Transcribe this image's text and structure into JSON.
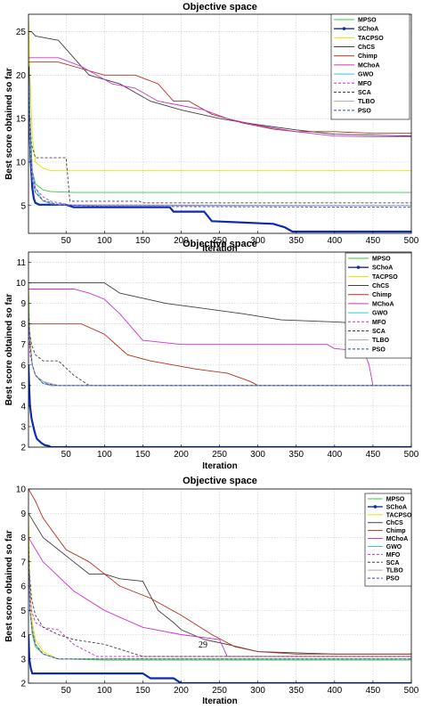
{
  "chart_data": [
    {
      "type": "line",
      "title": "Objective space",
      "xlabel": "Iteration",
      "ylabel": "Best score obtained so far",
      "xlim": [
        1,
        500
      ],
      "ylim": [
        1.8,
        27
      ],
      "xticks": [
        50,
        100,
        150,
        200,
        250,
        300,
        350,
        400,
        450,
        500
      ],
      "yticks": [
        5,
        10,
        15,
        20,
        25
      ],
      "grid": true,
      "legend_position": "top-right",
      "series": [
        {
          "name": "MPSO",
          "color": "#33cc33",
          "style": "solid",
          "marker": "",
          "x": [
            1,
            3,
            6,
            10,
            20,
            30,
            60,
            500
          ],
          "y": [
            22,
            15,
            9,
            7.5,
            6.8,
            6.6,
            6.5,
            6.5
          ]
        },
        {
          "name": "SChoA",
          "color": "#0b2bb0",
          "style": "solid",
          "marker": "dot",
          "x": [
            1,
            2,
            4,
            6,
            8,
            10,
            15,
            50,
            60,
            185,
            190,
            230,
            240,
            320,
            335,
            345,
            500
          ],
          "y": [
            21,
            15,
            10,
            7,
            5.8,
            5.3,
            5.1,
            5.1,
            4.8,
            4.8,
            4.3,
            4.3,
            3.2,
            2.9,
            2.5,
            2,
            2
          ]
        },
        {
          "name": "TACPSO",
          "color": "#e8e000",
          "style": "solid",
          "marker": "",
          "x": [
            1,
            3,
            6,
            10,
            20,
            30,
            500
          ],
          "y": [
            27,
            20,
            13,
            10,
            9.3,
            9,
            9
          ]
        },
        {
          "name": "ChCS",
          "color": "#404040",
          "style": "solid",
          "marker": "",
          "x": [
            1,
            5,
            10,
            40,
            60,
            80,
            120,
            160,
            200,
            250,
            300,
            350,
            400,
            450,
            500
          ],
          "y": [
            25,
            25,
            24.5,
            24,
            22,
            20,
            19,
            17,
            16,
            15,
            14.3,
            13.7,
            13.2,
            13.1,
            13
          ]
        },
        {
          "name": "Chimp",
          "color": "#b03020",
          "style": "solid",
          "marker": "",
          "x": [
            1,
            40,
            80,
            100,
            140,
            170,
            190,
            210,
            240,
            280,
            320,
            350,
            400,
            450,
            500
          ],
          "y": [
            21.5,
            21.5,
            20.5,
            20,
            20,
            19,
            17,
            17,
            15.5,
            14.5,
            13.8,
            13.5,
            13.5,
            13.3,
            13.3
          ]
        },
        {
          "name": "MChoA",
          "color": "#cc33cc",
          "style": "solid",
          "marker": "",
          "x": [
            1,
            40,
            70,
            110,
            140,
            170,
            200,
            230,
            260,
            300,
            350,
            400,
            450,
            500
          ],
          "y": [
            22,
            22,
            21,
            19,
            18.5,
            17,
            16.5,
            16,
            15,
            14.2,
            13.5,
            13,
            12.9,
            12.9
          ]
        },
        {
          "name": "GWO",
          "color": "#33cccc",
          "style": "solid",
          "marker": "",
          "x": [
            1,
            3,
            5,
            10,
            20,
            30,
            50,
            100,
            500
          ],
          "y": [
            20,
            14,
            9,
            7,
            5.5,
            5.2,
            5.1,
            5,
            5
          ]
        },
        {
          "name": "MFO",
          "color": "#cc33cc",
          "style": "dashed",
          "marker": "",
          "x": [
            1,
            3,
            6,
            10,
            20,
            30,
            60,
            500
          ],
          "y": [
            18,
            12,
            9,
            7,
            6,
            5.5,
            5,
            5
          ]
        },
        {
          "name": "SCA",
          "color": "#404040",
          "style": "dashed",
          "marker": "",
          "x": [
            1,
            5,
            10,
            20,
            30,
            40,
            50,
            55,
            145,
            150,
            500
          ],
          "y": [
            17,
            12,
            10.5,
            10.5,
            10.5,
            10.5,
            10.5,
            5.5,
            5.5,
            5.3,
            5.3
          ]
        },
        {
          "name": "TLBO",
          "color": "#aaaaaa",
          "style": "solid",
          "marker": "",
          "x": [
            1,
            3,
            6,
            10,
            20,
            40,
            500
          ],
          "y": [
            20,
            12,
            8,
            6.5,
            5.5,
            5.1,
            5
          ]
        },
        {
          "name": "PSO",
          "color": "#3344cc",
          "style": "dashed",
          "marker": "",
          "x": [
            1,
            3,
            6,
            10,
            20,
            40,
            100,
            500
          ],
          "y": [
            19,
            12,
            8,
            6.5,
            5.6,
            5.1,
            4.9,
            4.8
          ]
        }
      ]
    },
    {
      "type": "line",
      "title": "Objective space",
      "xlabel": "Iteration",
      "ylabel": "Best score obtained so far",
      "xlim": [
        1,
        500
      ],
      "ylim": [
        2,
        11.5
      ],
      "xticks": [
        50,
        100,
        150,
        200,
        250,
        300,
        350,
        400,
        450,
        500
      ],
      "yticks": [
        2,
        3,
        4,
        5,
        6,
        7,
        8,
        9,
        10,
        11
      ],
      "grid": true,
      "legend_position": "top-right",
      "series": [
        {
          "name": "MPSO",
          "color": "#33cc33",
          "style": "solid",
          "marker": "",
          "x": [
            1,
            3,
            6,
            10,
            20,
            30,
            500
          ],
          "y": [
            9,
            7,
            6,
            5.5,
            5.1,
            5,
            5
          ]
        },
        {
          "name": "SChoA",
          "color": "#0b2bb0",
          "style": "solid",
          "marker": "dot",
          "x": [
            1,
            2,
            3,
            5,
            8,
            10,
            12,
            18,
            22,
            28,
            30,
            500
          ],
          "y": [
            6,
            4.8,
            4,
            3.4,
            2.9,
            2.6,
            2.4,
            2.2,
            2.1,
            2.05,
            2,
            2
          ]
        },
        {
          "name": "TACPSO",
          "color": "#e8e000",
          "style": "solid",
          "marker": "",
          "x": [
            1,
            3,
            6,
            10,
            20,
            30,
            500
          ],
          "y": [
            10,
            7.5,
            6,
            5.5,
            5.2,
            5,
            5
          ]
        },
        {
          "name": "ChCS",
          "color": "#404040",
          "style": "solid",
          "marker": "",
          "x": [
            1,
            100,
            120,
            180,
            220,
            280,
            330,
            400,
            450,
            500
          ],
          "y": [
            10,
            10,
            9.5,
            9,
            8.8,
            8.5,
            8.2,
            8.1,
            8,
            8
          ]
        },
        {
          "name": "Chimp",
          "color": "#b03020",
          "style": "solid",
          "marker": "",
          "x": [
            1,
            70,
            100,
            130,
            160,
            190,
            220,
            260,
            290,
            300,
            500
          ],
          "y": [
            8,
            8,
            7.5,
            6.5,
            6.2,
            6,
            5.8,
            5.6,
            5.2,
            5,
            5
          ]
        },
        {
          "name": "MChoA",
          "color": "#cc33cc",
          "style": "solid",
          "marker": "",
          "x": [
            1,
            60,
            80,
            100,
            120,
            150,
            200,
            300,
            390,
            400,
            430,
            440,
            445,
            450
          ],
          "y": [
            9.7,
            9.7,
            9.5,
            9.2,
            8.5,
            7.2,
            7,
            7,
            7,
            6.8,
            6.7,
            6.5,
            6,
            5
          ]
        },
        {
          "name": "GWO",
          "color": "#33cccc",
          "style": "solid",
          "marker": "",
          "x": [
            1,
            3,
            6,
            10,
            20,
            30,
            500
          ],
          "y": [
            9.5,
            7,
            6,
            5.5,
            5.1,
            5,
            5
          ]
        },
        {
          "name": "MFO",
          "color": "#cc33cc",
          "style": "dashed",
          "marker": "",
          "x": [
            1,
            3,
            6,
            10,
            20,
            30,
            500
          ],
          "y": [
            8,
            6.5,
            6,
            5.5,
            5.2,
            5,
            5
          ]
        },
        {
          "name": "SCA",
          "color": "#404040",
          "style": "dashed",
          "marker": "",
          "x": [
            1,
            5,
            10,
            20,
            40,
            60,
            80,
            500
          ],
          "y": [
            8,
            7,
            6.5,
            6.2,
            6.2,
            5.5,
            5,
            5
          ]
        },
        {
          "name": "TLBO",
          "color": "#aaaaaa",
          "style": "solid",
          "marker": "",
          "x": [
            1,
            3,
            6,
            10,
            20,
            40,
            500
          ],
          "y": [
            9,
            7,
            6,
            5.5,
            5.2,
            5,
            5
          ]
        },
        {
          "name": "PSO",
          "color": "#3344cc",
          "style": "dashed",
          "marker": "",
          "x": [
            1,
            3,
            6,
            10,
            20,
            40,
            500
          ],
          "y": [
            8.5,
            7,
            6,
            5.5,
            5.1,
            5,
            5
          ]
        }
      ]
    },
    {
      "type": "line",
      "title": "Objective space",
      "xlabel": "Iteration",
      "ylabel": "Best score obtained so far",
      "xlim": [
        1,
        500
      ],
      "ylim": [
        2,
        10
      ],
      "xticks": [
        50,
        100,
        150,
        200,
        250,
        300,
        350,
        400,
        450,
        500
      ],
      "yticks": [
        2,
        3,
        4,
        5,
        6,
        7,
        8,
        9,
        10
      ],
      "grid": true,
      "legend_position": "top-right",
      "annotation": "29",
      "series": [
        {
          "name": "MPSO",
          "color": "#33cc33",
          "style": "solid",
          "marker": "",
          "x": [
            1,
            3,
            6,
            10,
            20,
            40,
            100,
            500
          ],
          "y": [
            8,
            5,
            4,
            3.5,
            3.2,
            3,
            2.95,
            2.95
          ]
        },
        {
          "name": "SChoA",
          "color": "#0b2bb0",
          "style": "solid",
          "marker": "dot",
          "x": [
            1,
            2,
            4,
            6,
            150,
            160,
            190,
            200,
            500
          ],
          "y": [
            4,
            3,
            2.6,
            2.4,
            2.4,
            2.2,
            2.2,
            2,
            2
          ]
        },
        {
          "name": "TACPSO",
          "color": "#e8e000",
          "style": "solid",
          "marker": "",
          "x": [
            1,
            3,
            6,
            10,
            20,
            40,
            500
          ],
          "y": [
            9,
            6,
            4.5,
            3.8,
            3.3,
            3,
            3
          ]
        },
        {
          "name": "ChCS",
          "color": "#404040",
          "style": "solid",
          "marker": "",
          "x": [
            1,
            20,
            40,
            60,
            80,
            100,
            120,
            150,
            170,
            190,
            200,
            230,
            260,
            300,
            400,
            500
          ],
          "y": [
            9,
            8,
            7.5,
            7,
            6.5,
            6.5,
            6.3,
            6.2,
            5,
            4.5,
            4.2,
            3.8,
            3.6,
            3.3,
            3.2,
            3.2
          ]
        },
        {
          "name": "Chimp",
          "color": "#b03020",
          "style": "solid",
          "marker": "",
          "x": [
            1,
            10,
            20,
            50,
            80,
            120,
            160,
            200,
            240,
            270,
            300,
            350,
            500
          ],
          "y": [
            10,
            9.5,
            8.8,
            7.5,
            7,
            6,
            5.5,
            4.8,
            4,
            3.5,
            3.3,
            3.2,
            3.2
          ]
        },
        {
          "name": "MChoA",
          "color": "#cc33cc",
          "style": "solid",
          "marker": "",
          "x": [
            1,
            20,
            60,
            100,
            150,
            200,
            250,
            260,
            500
          ],
          "y": [
            8,
            7,
            5.8,
            5,
            4.3,
            4,
            3.8,
            3.1,
            3.1
          ]
        },
        {
          "name": "GWO",
          "color": "#33cccc",
          "style": "solid",
          "marker": "",
          "x": [
            1,
            3,
            6,
            10,
            20,
            40,
            500
          ],
          "y": [
            7,
            5,
            4.2,
            3.6,
            3.2,
            3,
            3
          ]
        },
        {
          "name": "MFO",
          "color": "#cc33cc",
          "style": "dashed",
          "marker": "",
          "x": [
            1,
            5,
            10,
            20,
            40,
            60,
            90,
            500
          ],
          "y": [
            6.5,
            5,
            4.5,
            4.3,
            4.2,
            3.6,
            3.1,
            3.1
          ]
        },
        {
          "name": "SCA",
          "color": "#404040",
          "style": "dashed",
          "marker": "",
          "x": [
            1,
            5,
            10,
            20,
            40,
            60,
            100,
            140,
            150,
            500
          ],
          "y": [
            7,
            5.5,
            4.8,
            4.3,
            4,
            3.8,
            3.6,
            3.2,
            3.1,
            3.1
          ]
        },
        {
          "name": "TLBO",
          "color": "#aaaaaa",
          "style": "solid",
          "marker": "",
          "x": [
            1,
            3,
            6,
            10,
            20,
            40,
            500
          ],
          "y": [
            7.5,
            5,
            4.2,
            3.6,
            3.2,
            3,
            3
          ]
        },
        {
          "name": "PSO",
          "color": "#3344cc",
          "style": "dashed",
          "marker": "",
          "x": [
            1,
            3,
            6,
            10,
            20,
            40,
            500
          ],
          "y": [
            8,
            5,
            4.2,
            3.6,
            3.2,
            3,
            3
          ]
        }
      ]
    }
  ]
}
